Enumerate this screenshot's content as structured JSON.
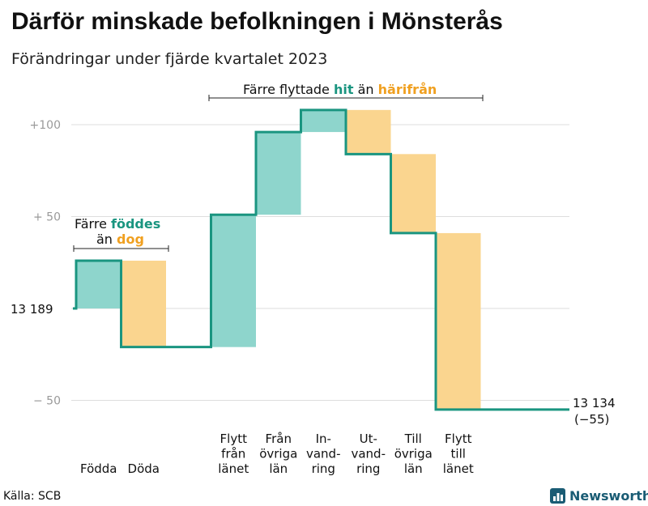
{
  "title": "Därför minskade befolkningen i Mönsterås",
  "subtitle": "Förändringar under fjärde kvartalet 2023",
  "source": "Källa: SCB",
  "brand": "Newsworthy",
  "colors": {
    "increase": "#8ed5cc",
    "decrease": "#fad58f",
    "line": "#1a9580",
    "hit_text": "#1a9580",
    "harifran_text": "#f0a020",
    "grid": "#dddddd",
    "logo": "#1a5c74"
  },
  "annotations": {
    "birth": {
      "line1": "Färre",
      "line1_hl": "föddes",
      "line2": "än",
      "line2_hl": "dog"
    },
    "migration": {
      "text1": "Färre flyttade",
      "hl1": "hit",
      "text2": "än",
      "hl2": "härifrån"
    }
  },
  "chart_data": {
    "type": "waterfall",
    "start_label": "13  189",
    "end_label_line1": "13 134",
    "end_label_line2": "(−55)",
    "start_value": 13189,
    "end_value": 13134,
    "ylim": [
      -60,
      115
    ],
    "y_ticks": [
      {
        "value": 100,
        "label": "+100"
      },
      {
        "value": 50,
        "label": "+  50"
      },
      {
        "value": 0,
        "label": ""
      },
      {
        "value": -50,
        "label": "−  50"
      }
    ],
    "categories": [
      {
        "lines": [
          "Födda"
        ],
        "change": 26
      },
      {
        "lines": [
          "Döda"
        ],
        "change": -47
      },
      {
        "lines": [],
        "change": 0
      },
      {
        "lines": [
          "Flytt",
          "från",
          "länet"
        ],
        "change": 72
      },
      {
        "lines": [
          "Från",
          "övriga",
          "län"
        ],
        "change": 45
      },
      {
        "lines": [
          "In-",
          "vand-",
          "ring"
        ],
        "change": 12
      },
      {
        "lines": [
          "Ut-",
          "vand-",
          "ring"
        ],
        "change": -24
      },
      {
        "lines": [
          "Till",
          "övriga",
          "län"
        ],
        "change": -43
      },
      {
        "lines": [
          "Flytt",
          "till",
          "länet"
        ],
        "change": -96
      }
    ]
  }
}
